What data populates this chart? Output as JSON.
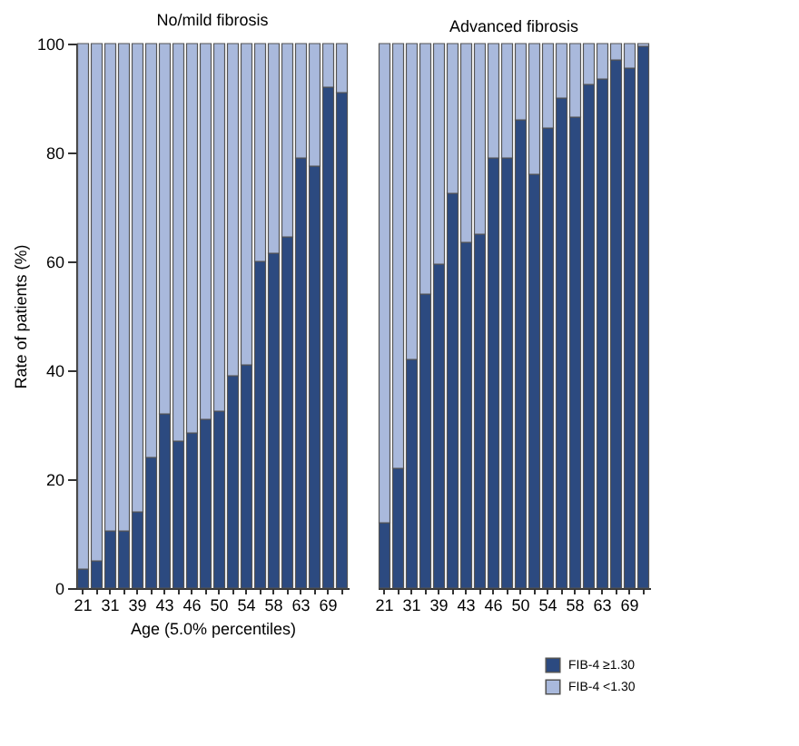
{
  "chart_data": [
    {
      "type": "bar",
      "title": "No/mild fibrosis",
      "xlabel": "Age (5.0% percentiles)",
      "ylabel": "Rate of patients (%)",
      "stacked": true,
      "categories": [
        "21",
        null,
        "31",
        null,
        "39",
        null,
        "43",
        null,
        "46",
        null,
        "50",
        null,
        "54",
        null,
        "58",
        null,
        "63",
        null,
        "69",
        null
      ],
      "series": [
        {
          "color": "#2c4a80",
          "values": [
            3.5,
            5,
            10.5,
            10.5,
            14,
            24,
            32,
            27,
            28.5,
            31,
            32.5,
            39,
            41,
            60,
            61.5,
            64.5,
            79,
            77.5,
            92,
            91
          ]
        },
        {
          "color": "#a9b9dc",
          "values": [
            96.5,
            95,
            89.5,
            89.5,
            86,
            76,
            68,
            73,
            71.5,
            69,
            67.5,
            61,
            59,
            40,
            38.5,
            35.5,
            21,
            22.5,
            8,
            9
          ]
        }
      ],
      "ylim": [
        0,
        100
      ],
      "yticks": [
        0,
        20,
        40,
        60,
        80,
        100
      ]
    },
    {
      "type": "bar",
      "title": "Advanced fibrosis",
      "stacked": true,
      "tick_labels": "x",
      "legend": "bottom right",
      "categories": [
        "21",
        null,
        "31",
        null,
        "39",
        null,
        "43",
        null,
        "46",
        null,
        "50",
        null,
        "54",
        null,
        "58",
        null,
        "63",
        null,
        "69",
        null
      ],
      "series": [
        {
          "name": "FIB-4 ≥1.30",
          "color": "#2c4a80",
          "values": [
            12,
            22,
            42,
            54,
            59.5,
            72.5,
            63.5,
            65,
            79,
            79,
            86,
            76,
            84.5,
            90,
            86.5,
            92.5,
            93.5,
            97,
            95.5,
            99.5
          ]
        },
        {
          "name": "FIB-4 <1.30",
          "color": "#a9b9dc",
          "values": [
            88,
            78,
            58,
            46,
            40.5,
            27.5,
            36.5,
            35,
            21,
            21,
            14,
            24,
            15.5,
            10,
            13.5,
            7.5,
            6.5,
            3,
            4.5,
            0.5
          ]
        }
      ],
      "ylim": [
        0,
        100
      ],
      "yticks": [
        0,
        20,
        40,
        60,
        80,
        100
      ]
    }
  ]
}
